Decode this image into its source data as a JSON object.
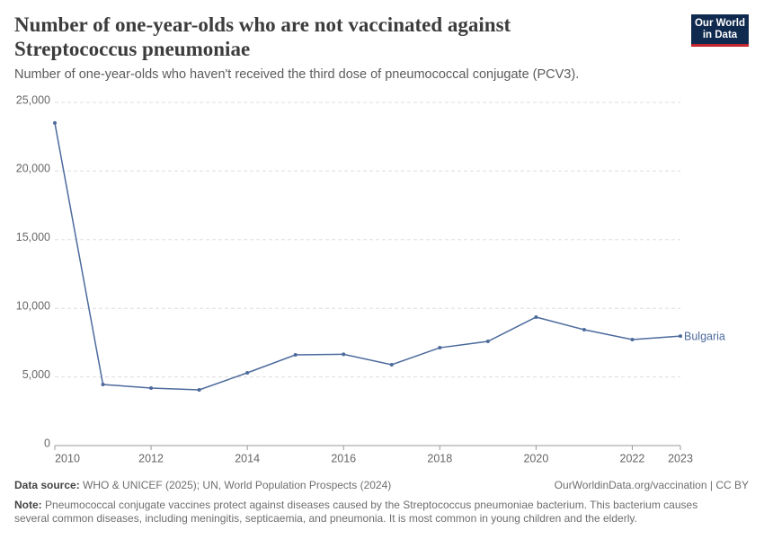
{
  "header": {
    "title": "Number of one-year-olds who are not vaccinated against Streptococcus pneumoniae",
    "subtitle": "Number of one-year-olds who haven't received the third dose of pneumococcal conjugate (PCV3).",
    "logo": [
      "Our World",
      "in Data"
    ]
  },
  "chart_data": {
    "type": "line",
    "x": [
      2010,
      2011,
      2012,
      2013,
      2014,
      2015,
      2016,
      2017,
      2018,
      2019,
      2020,
      2021,
      2022,
      2023
    ],
    "series": [
      {
        "name": "Bulgaria",
        "color": "#4c6a9c",
        "values": [
          23500,
          4450,
          4190,
          4060,
          5300,
          6610,
          6650,
          5890,
          7130,
          7590,
          9360,
          8440,
          7720,
          7980
        ]
      }
    ],
    "xlim": [
      2010,
      2023
    ],
    "xticks": [
      2010,
      2012,
      2014,
      2016,
      2018,
      2020,
      2022,
      2023
    ],
    "ylim": [
      0,
      25000
    ],
    "yticks": [
      0,
      {
        "value": 5000,
        "label": "5,000"
      },
      {
        "value": 10000,
        "label": "10,000"
      },
      {
        "value": 15000,
        "label": "15,000"
      },
      {
        "value": 20000,
        "label": "20,000"
      },
      {
        "value": 25000,
        "label": "25,000"
      }
    ],
    "grid": true
  },
  "footer": {
    "source_label": "Data source:",
    "source": "WHO & UNICEF (2025); UN, World Population Prospects (2024)",
    "url": "OurWorldinData.org/vaccination | CC BY",
    "note_label": "Note:",
    "note": "Pneumococcal conjugate vaccines protect against diseases caused by the Streptococcus pneumoniae bacterium. This bacterium causes several common diseases, including meningitis, septicaemia, and pneumonia. It is most common in young children and the elderly."
  }
}
